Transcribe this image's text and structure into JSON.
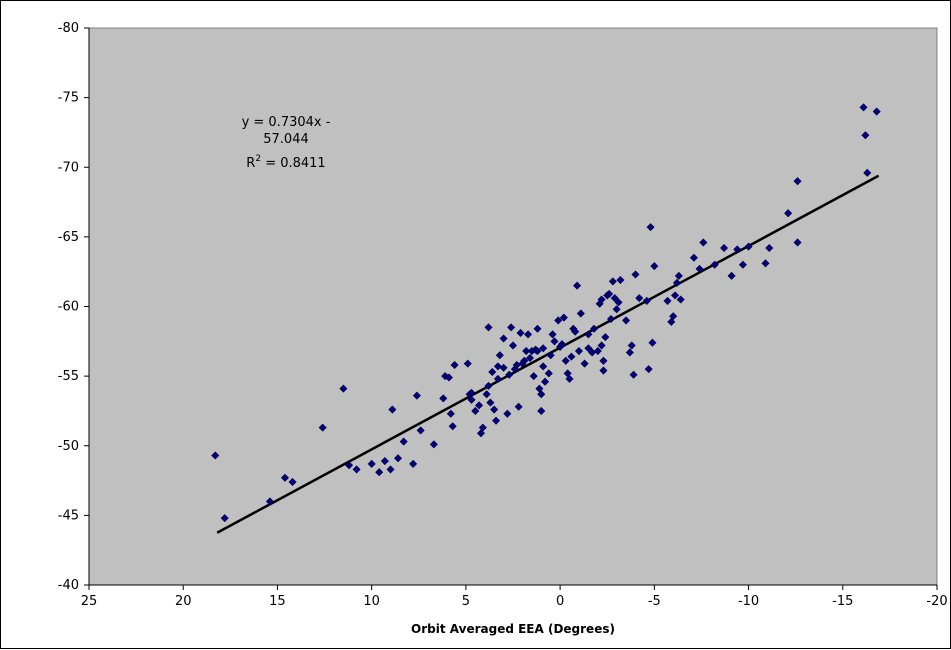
{
  "chart_data": {
    "type": "scatter",
    "xlabel": "Orbit Averaged EEA (Degrees)",
    "ylabel": "",
    "xlim": [
      25,
      -20
    ],
    "ylim": [
      -40,
      -80
    ],
    "x_ticks": [
      25,
      20,
      15,
      10,
      5,
      0,
      -5,
      -10,
      -15,
      -20
    ],
    "y_ticks": [
      -40,
      -45,
      -50,
      -55,
      -60,
      -65,
      -70,
      -75,
      -80
    ],
    "grid": false,
    "plot_background": "#c0c0c0",
    "marker_color": "#000080",
    "trendline": {
      "slope": 0.7304,
      "intercept": -57.044,
      "x_range": [
        18.2,
        -16.9
      ],
      "color": "#000000"
    },
    "equation_line1": "y = 0.7304x -",
    "equation_line2": "57.044",
    "r2_prefix": "R",
    "r2_sup": "2",
    "r2_suffix": " = 0.8411",
    "points": [
      [
        18.3,
        -49.3
      ],
      [
        17.8,
        -44.8
      ],
      [
        15.4,
        -46.0
      ],
      [
        14.6,
        -47.7
      ],
      [
        14.2,
        -47.4
      ],
      [
        12.6,
        -51.3
      ],
      [
        11.5,
        -54.1
      ],
      [
        11.2,
        -48.6
      ],
      [
        10.8,
        -48.3
      ],
      [
        10.0,
        -48.7
      ],
      [
        9.6,
        -48.1
      ],
      [
        9.3,
        -48.9
      ],
      [
        9.0,
        -48.3
      ],
      [
        8.9,
        -52.6
      ],
      [
        8.6,
        -49.1
      ],
      [
        8.3,
        -50.3
      ],
      [
        7.8,
        -48.7
      ],
      [
        7.6,
        -53.6
      ],
      [
        7.4,
        -51.1
      ],
      [
        6.7,
        -50.1
      ],
      [
        6.2,
        -53.4
      ],
      [
        6.1,
        -55.0
      ],
      [
        5.9,
        -54.9
      ],
      [
        5.8,
        -52.3
      ],
      [
        5.7,
        -51.4
      ],
      [
        5.6,
        -55.8
      ],
      [
        4.9,
        -55.9
      ],
      [
        4.8,
        -53.7
      ],
      [
        4.7,
        -53.3
      ],
      [
        4.7,
        -53.8
      ],
      [
        4.5,
        -52.5
      ],
      [
        4.3,
        -52.9
      ],
      [
        4.2,
        -50.9
      ],
      [
        4.1,
        -51.3
      ],
      [
        3.9,
        -53.7
      ],
      [
        3.8,
        -58.5
      ],
      [
        3.8,
        -54.3
      ],
      [
        3.7,
        -53.1
      ],
      [
        3.6,
        -55.3
      ],
      [
        3.5,
        -52.6
      ],
      [
        3.4,
        -51.8
      ],
      [
        3.3,
        -54.8
      ],
      [
        3.3,
        -55.7
      ],
      [
        3.2,
        -56.5
      ],
      [
        3.0,
        -57.7
      ],
      [
        3.0,
        -55.6
      ],
      [
        2.8,
        -52.3
      ],
      [
        2.7,
        -55.1
      ],
      [
        2.6,
        -58.5
      ],
      [
        2.5,
        -57.2
      ],
      [
        2.4,
        -55.5
      ],
      [
        2.3,
        -55.8
      ],
      [
        2.2,
        -52.8
      ],
      [
        2.1,
        -58.1
      ],
      [
        2.0,
        -55.9
      ],
      [
        1.9,
        -56.1
      ],
      [
        1.8,
        -56.8
      ],
      [
        1.7,
        -58.0
      ],
      [
        1.6,
        -56.3
      ],
      [
        1.5,
        -56.8
      ],
      [
        1.4,
        -55.0
      ],
      [
        1.3,
        -56.9
      ],
      [
        1.2,
        -58.4
      ],
      [
        1.2,
        -56.8
      ],
      [
        1.1,
        -54.1
      ],
      [
        1.0,
        -53.7
      ],
      [
        1.0,
        -52.5
      ],
      [
        0.9,
        -55.7
      ],
      [
        0.9,
        -57.0
      ],
      [
        0.8,
        -54.6
      ],
      [
        0.6,
        -55.2
      ],
      [
        0.5,
        -56.5
      ],
      [
        0.4,
        -58.0
      ],
      [
        0.3,
        -57.5
      ],
      [
        0.1,
        -59.0
      ],
      [
        0.0,
        -57.1
      ],
      [
        -0.1,
        -57.3
      ],
      [
        -0.2,
        -59.2
      ],
      [
        -0.3,
        -56.1
      ],
      [
        -0.4,
        -55.2
      ],
      [
        -0.5,
        -54.8
      ],
      [
        -0.6,
        -56.4
      ],
      [
        -0.7,
        -58.4
      ],
      [
        -0.8,
        -58.2
      ],
      [
        -0.9,
        -61.5
      ],
      [
        -1.0,
        -56.8
      ],
      [
        -1.1,
        -59.5
      ],
      [
        -1.3,
        -55.9
      ],
      [
        -1.5,
        -57.0
      ],
      [
        -1.5,
        -58.0
      ],
      [
        -1.7,
        -56.7
      ],
      [
        -1.8,
        -58.4
      ],
      [
        -2.0,
        -56.8
      ],
      [
        -2.1,
        -60.2
      ],
      [
        -2.2,
        -60.5
      ],
      [
        -2.2,
        -57.2
      ],
      [
        -2.3,
        -55.4
      ],
      [
        -2.3,
        -56.1
      ],
      [
        -2.4,
        -57.8
      ],
      [
        -2.5,
        -60.8
      ],
      [
        -2.6,
        -60.9
      ],
      [
        -2.7,
        -59.1
      ],
      [
        -2.8,
        -61.8
      ],
      [
        -2.9,
        -60.6
      ],
      [
        -3.0,
        -59.8
      ],
      [
        -3.1,
        -60.3
      ],
      [
        -3.2,
        -61.9
      ],
      [
        -3.5,
        -59.0
      ],
      [
        -3.7,
        -56.7
      ],
      [
        -3.8,
        -57.2
      ],
      [
        -3.9,
        -55.1
      ],
      [
        -4.0,
        -62.3
      ],
      [
        -4.2,
        -60.6
      ],
      [
        -4.6,
        -60.4
      ],
      [
        -4.7,
        -55.5
      ],
      [
        -4.8,
        -65.7
      ],
      [
        -4.9,
        -57.4
      ],
      [
        -5.0,
        -62.9
      ],
      [
        -5.7,
        -60.4
      ],
      [
        -5.9,
        -58.9
      ],
      [
        -6.0,
        -59.3
      ],
      [
        -6.1,
        -60.8
      ],
      [
        -6.2,
        -61.7
      ],
      [
        -6.3,
        -62.2
      ],
      [
        -6.4,
        -60.5
      ],
      [
        -7.1,
        -63.5
      ],
      [
        -7.4,
        -62.7
      ],
      [
        -7.6,
        -64.6
      ],
      [
        -8.2,
        -63.0
      ],
      [
        -8.7,
        -64.2
      ],
      [
        -9.1,
        -62.2
      ],
      [
        -9.4,
        -64.1
      ],
      [
        -9.7,
        -63.0
      ],
      [
        -10.0,
        -64.3
      ],
      [
        -10.9,
        -63.1
      ],
      [
        -11.1,
        -64.2
      ],
      [
        -12.1,
        -66.7
      ],
      [
        -12.6,
        -69.0
      ],
      [
        -12.6,
        -64.6
      ],
      [
        -16.1,
        -74.3
      ],
      [
        -16.2,
        -72.3
      ],
      [
        -16.3,
        -69.6
      ],
      [
        -16.8,
        -74.0
      ]
    ]
  }
}
